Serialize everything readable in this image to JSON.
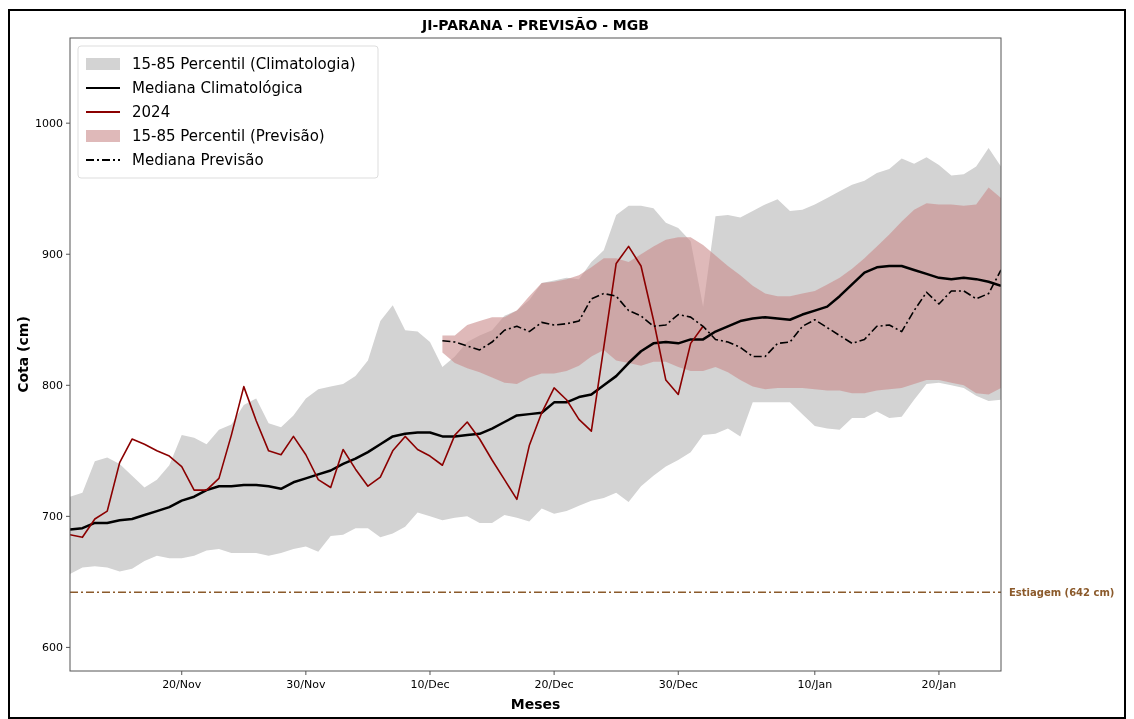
{
  "chart_data": {
    "type": "line",
    "title": "JI-PARANA - PREVISÃO - MGB",
    "xlabel": "Meses",
    "ylabel": "Cota (cm)",
    "x": [
      "2024-11-11",
      "2024-11-12",
      "2024-11-13",
      "2024-11-14",
      "2024-11-15",
      "2024-11-16",
      "2024-11-17",
      "2024-11-18",
      "2024-11-19",
      "2024-11-20",
      "2024-11-21",
      "2024-11-22",
      "2024-11-23",
      "2024-11-24",
      "2024-11-25",
      "2024-11-26",
      "2024-11-27",
      "2024-11-28",
      "2024-11-29",
      "2024-11-30",
      "2024-12-01",
      "2024-12-02",
      "2024-12-03",
      "2024-12-04",
      "2024-12-05",
      "2024-12-06",
      "2024-12-07",
      "2024-12-08",
      "2024-12-09",
      "2024-12-10",
      "2024-12-11",
      "2024-12-12",
      "2024-12-13",
      "2024-12-14",
      "2024-12-15",
      "2024-12-16",
      "2024-12-17",
      "2024-12-18",
      "2024-12-19",
      "2024-12-20",
      "2024-12-21",
      "2024-12-22",
      "2024-12-23",
      "2024-12-24",
      "2024-12-25",
      "2024-12-26",
      "2024-12-27",
      "2024-12-28",
      "2024-12-29",
      "2024-12-30",
      "2024-12-31",
      "2025-01-01",
      "2025-01-02",
      "2025-01-03",
      "2025-01-04",
      "2025-01-05",
      "2025-01-06",
      "2025-01-07",
      "2025-01-08",
      "2025-01-09",
      "2025-01-10",
      "2025-01-11",
      "2025-01-12",
      "2025-01-13",
      "2025-01-14",
      "2025-01-15",
      "2025-01-16",
      "2025-01-17",
      "2025-01-18",
      "2025-01-19",
      "2025-01-20",
      "2025-01-21",
      "2025-01-22",
      "2025-01-23",
      "2025-01-24",
      "2025-01-25"
    ],
    "xlim": [
      "2024-11-11",
      "2025-01-25"
    ],
    "xticks": [
      {
        "value": "2024-11-20",
        "label": "20/Nov"
      },
      {
        "value": "2024-11-30",
        "label": "30/Nov"
      },
      {
        "value": "2024-12-10",
        "label": "10/Dec"
      },
      {
        "value": "2024-12-20",
        "label": "20/Dec"
      },
      {
        "value": "2024-12-30",
        "label": "30/Dec"
      },
      {
        "value": "2025-01-10",
        "label": "10/Jan"
      },
      {
        "value": "2025-01-20",
        "label": "20/Jan"
      }
    ],
    "ylim": [
      582,
      1065
    ],
    "yticks": [
      600,
      700,
      800,
      900,
      1000
    ],
    "grid": false,
    "legend": "top left",
    "series": [
      {
        "name": "15-85 Percentil (Climatologia)",
        "type": "area",
        "color": "#d3d3d3",
        "values": [
          null,
          null,
          null,
          null,
          null,
          null,
          null,
          null,
          null,
          null,
          null,
          null,
          null,
          null,
          null,
          null,
          null,
          null,
          null,
          null,
          null,
          null,
          null,
          null,
          null,
          null,
          null,
          null,
          null,
          null,
          null,
          null,
          null,
          null,
          null,
          null,
          null,
          null,
          null,
          null,
          null,
          null,
          null,
          null,
          null,
          null,
          null,
          null,
          null,
          null,
          null,
          null,
          null,
          null,
          null,
          null,
          null,
          null,
          null,
          null,
          null,
          null,
          null,
          null,
          null,
          null,
          null,
          null,
          null,
          null,
          null,
          null,
          null,
          null,
          null,
          null
        ],
        "lower": [
          656,
          661,
          662,
          661,
          658,
          660,
          666,
          670,
          668,
          668,
          670,
          674,
          675,
          672,
          672,
          672,
          670,
          672,
          675,
          677,
          673,
          685,
          686,
          691,
          691,
          684,
          687,
          692,
          703,
          700,
          697,
          699,
          700,
          695,
          695,
          701,
          699,
          696,
          706,
          702,
          704,
          708,
          712,
          714,
          718,
          711,
          723,
          731,
          738,
          743,
          749,
          762,
          763,
          767,
          761,
          787,
          787,
          787,
          787,
          778,
          769,
          767,
          766,
          775,
          775,
          780,
          775,
          776,
          789,
          801,
          802,
          800,
          798,
          792,
          788,
          789
        ],
        "upper": [
          715,
          718,
          742,
          745,
          740,
          731,
          722,
          728,
          739,
          762,
          760,
          755,
          766,
          770,
          785,
          790,
          771,
          768,
          777,
          790,
          797,
          799,
          801,
          807,
          819,
          849,
          861,
          842,
          841,
          833,
          814,
          822,
          833,
          838,
          842,
          853,
          857,
          865,
          878,
          880,
          882,
          881,
          894,
          903,
          930,
          937,
          937,
          935,
          924,
          920,
          910,
          860,
          929,
          930,
          928,
          933,
          938,
          942,
          933,
          934,
          938,
          943,
          948,
          953,
          956,
          962,
          965,
          973,
          969,
          974,
          968,
          960,
          961,
          967,
          981,
          967
        ]
      },
      {
        "name": "Mediana Climatológica",
        "type": "line",
        "color": "#000000",
        "line_style": "solid",
        "values": [
          690,
          691,
          695,
          695,
          697,
          698,
          701,
          704,
          707,
          712,
          715,
          720,
          723,
          723,
          724,
          724,
          723,
          721,
          726,
          729,
          732,
          735,
          740,
          744,
          749,
          755,
          761,
          763,
          764,
          764,
          761,
          761,
          762,
          763,
          767,
          772,
          777,
          778,
          779,
          787,
          787,
          791,
          793,
          800,
          807,
          817,
          826,
          832,
          833,
          832,
          835,
          835,
          841,
          845,
          849,
          851,
          852,
          851,
          850,
          854,
          857,
          860,
          868,
          877,
          886,
          890,
          891,
          891,
          888,
          885,
          882,
          881,
          882,
          881,
          879,
          876
        ]
      },
      {
        "name": "2024",
        "type": "line",
        "color": "#8b0000",
        "line_style": "solid",
        "values": [
          686,
          684,
          698,
          704,
          741,
          759,
          755,
          750,
          746,
          738,
          720,
          720,
          729,
          762,
          799,
          773,
          750,
          747,
          761,
          747,
          728,
          722,
          751,
          736,
          723,
          730,
          750,
          761,
          751,
          746,
          739,
          762,
          772,
          759,
          743,
          728,
          713,
          754,
          779,
          798,
          789,
          774,
          765,
          829,
          893,
          906,
          891,
          850,
          804,
          793,
          832,
          845,
          null,
          null,
          null,
          null,
          null,
          null,
          null,
          null,
          null,
          null,
          null,
          null,
          null,
          null,
          null,
          null,
          null,
          null,
          null,
          null,
          null,
          null,
          null,
          null
        ]
      },
      {
        "name": "15-85 Percentil (Previsão)",
        "type": "area",
        "color": "#c98a8a",
        "values": [
          null,
          null,
          null,
          null,
          null,
          null,
          null,
          null,
          null,
          null,
          null,
          null,
          null,
          null,
          null,
          null,
          null,
          null,
          null,
          null,
          null,
          null,
          null,
          null,
          null,
          null,
          null,
          null,
          null,
          null,
          null,
          null,
          null,
          null,
          null,
          null,
          null,
          null,
          null,
          null,
          null,
          null,
          null,
          null,
          null,
          null,
          null,
          null,
          null,
          null,
          null,
          null,
          null,
          null,
          null,
          null,
          null,
          null,
          null,
          null,
          null,
          null,
          null,
          null,
          null,
          null,
          null,
          null,
          null,
          null,
          null,
          null,
          null,
          null,
          null,
          null
        ],
        "lower": [
          null,
          null,
          null,
          null,
          null,
          null,
          null,
          null,
          null,
          null,
          null,
          null,
          null,
          null,
          null,
          null,
          null,
          null,
          null,
          null,
          null,
          null,
          null,
          null,
          null,
          null,
          null,
          null,
          null,
          null,
          825,
          817,
          813,
          810,
          806,
          802,
          801,
          806,
          809,
          809,
          811,
          815,
          822,
          827,
          819,
          817,
          815,
          818,
          818,
          814,
          811,
          811,
          814,
          810,
          804,
          799,
          797,
          798,
          798,
          798,
          797,
          796,
          796,
          794,
          794,
          796,
          797,
          798,
          801,
          804,
          804,
          802,
          800,
          794,
          793,
          798
        ],
        "upper": [
          null,
          null,
          null,
          null,
          null,
          null,
          null,
          null,
          null,
          null,
          null,
          null,
          null,
          null,
          null,
          null,
          null,
          null,
          null,
          null,
          null,
          null,
          null,
          null,
          null,
          null,
          null,
          null,
          null,
          null,
          838,
          838,
          846,
          849,
          852,
          852,
          857,
          868,
          878,
          879,
          881,
          884,
          890,
          897,
          897,
          894,
          900,
          906,
          911,
          913,
          913,
          907,
          899,
          891,
          884,
          876,
          870,
          868,
          868,
          870,
          872,
          877,
          882,
          889,
          897,
          906,
          915,
          925,
          934,
          939,
          938,
          938,
          937,
          938,
          951,
          943
        ]
      },
      {
        "name": "Mediana Previsão",
        "type": "line",
        "color": "#000000",
        "line_style": "dashdot",
        "values": [
          null,
          null,
          null,
          null,
          null,
          null,
          null,
          null,
          null,
          null,
          null,
          null,
          null,
          null,
          null,
          null,
          null,
          null,
          null,
          null,
          null,
          null,
          null,
          null,
          null,
          null,
          null,
          null,
          null,
          null,
          834,
          833,
          830,
          827,
          833,
          842,
          845,
          841,
          848,
          846,
          847,
          849,
          866,
          870,
          868,
          857,
          853,
          845,
          846,
          854,
          852,
          845,
          835,
          833,
          829,
          822,
          822,
          832,
          833,
          845,
          850,
          844,
          838,
          832,
          835,
          845,
          846,
          841,
          857,
          871,
          862,
          872,
          872,
          866,
          870,
          888
        ]
      }
    ],
    "ref_lines": [
      {
        "axis": "y",
        "value": 642,
        "label": "Estiagem (642 cm)",
        "color": "#8b5a2b",
        "line_style": "dashdot"
      }
    ]
  }
}
